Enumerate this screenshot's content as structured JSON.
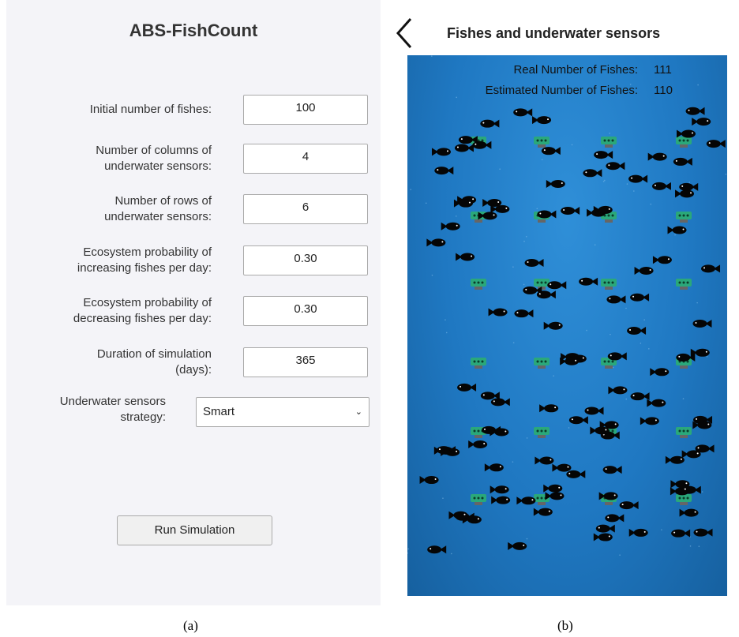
{
  "panel_a": {
    "title": "ABS-FishCount",
    "fields": [
      {
        "label": [
          "Initial number of fishes:"
        ],
        "value": "100"
      },
      {
        "label": [
          "Number of columns of",
          "underwater sensors:"
        ],
        "value": "4"
      },
      {
        "label": [
          "Number of rows of",
          "underwater sensors:"
        ],
        "value": "6"
      },
      {
        "label": [
          "Ecosystem probability of",
          "increasing fishes per day:"
        ],
        "value": "0.30"
      },
      {
        "label": [
          "Ecosystem probability of",
          "decreasing fishes per day:"
        ],
        "value": "0.30"
      },
      {
        "label": [
          "Duration of simulation",
          "(days):"
        ],
        "value": "365"
      }
    ],
    "strategy": {
      "label": [
        "Underwater sensors",
        "strategy:"
      ],
      "value": "Smart"
    },
    "button": "Run Simulation",
    "caption": "(a)"
  },
  "panel_b": {
    "title": "Fishes and underwater sensors",
    "stats": [
      {
        "label": "Real Number of Fishes:",
        "value": "111"
      },
      {
        "label": "Estimated Number of Fishes:",
        "value": "110"
      }
    ],
    "caption": "(b)"
  }
}
